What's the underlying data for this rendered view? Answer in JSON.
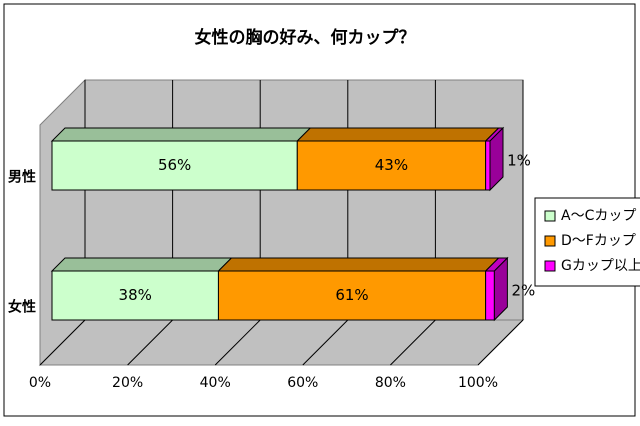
{
  "chart_data": {
    "type": "bar3d_stacked_horizontal",
    "title": "女性の胸の好み、何カップ？",
    "categories": [
      "男性",
      "女性"
    ],
    "series": [
      {
        "name": "A～Cカップ",
        "color": "#ccffcc",
        "values": [
          56,
          38
        ],
        "value_labels": [
          "56%",
          "38%"
        ]
      },
      {
        "name": "D～Fカップ",
        "color": "#ff9900",
        "values": [
          43,
          61
        ],
        "value_labels": [
          "43%",
          "61%"
        ]
      },
      {
        "name": "Gカップ以上",
        "color": "#ff00ff",
        "values": [
          1,
          2
        ],
        "value_labels": [
          "1%",
          "2%"
        ]
      }
    ],
    "xlim": [
      0,
      100
    ],
    "xticks": [
      {
        "value": 0,
        "label": "0%"
      },
      {
        "value": 20,
        "label": "20%"
      },
      {
        "value": 40,
        "label": "40%"
      },
      {
        "value": 60,
        "label": "60%"
      },
      {
        "value": 80,
        "label": "80%"
      },
      {
        "value": 100,
        "label": "100%"
      }
    ],
    "grid": true,
    "legend": "right"
  }
}
